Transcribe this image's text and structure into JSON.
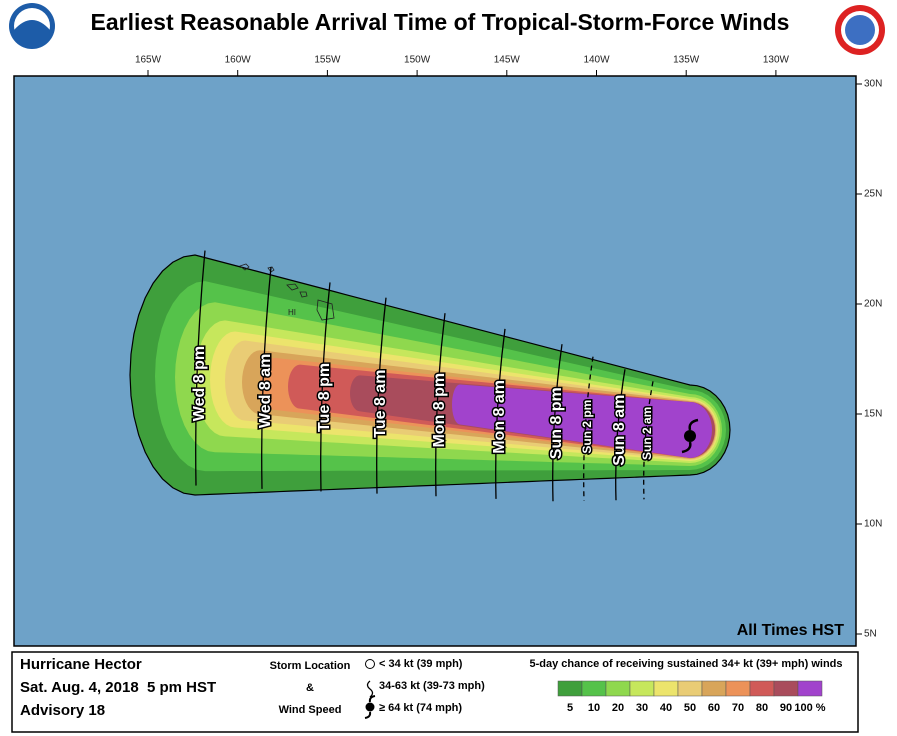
{
  "header": {
    "title": "Earliest Reasonable Arrival Time of Tropical-Storm-Force Winds"
  },
  "map": {
    "lon_labels": [
      "165W",
      "160W",
      "155W",
      "150W",
      "145W",
      "140W",
      "135W",
      "130W"
    ],
    "lat_labels": [
      "30N",
      "25N",
      "20N",
      "15N",
      "10N",
      "5N"
    ],
    "island_label": "HI",
    "time_labels": [
      "Wed 8 pm",
      "Wed 8 am",
      "Tue 8 pm",
      "Tue 8 am",
      "Mon 8 pm",
      "Mon 8 am",
      "Sun 8 pm",
      "Sun 2 pm",
      "Sun 8 am",
      "Sun 2 am"
    ],
    "note": "All Times HST"
  },
  "legend": {
    "storm": {
      "name": "Hurricane Hector",
      "date": "Sat. Aug. 4, 2018  5 pm HST",
      "advisory": "Advisory 18"
    },
    "key": {
      "line1": "Storm Location",
      "line2": "&",
      "line3": "Wind Speed",
      "items": [
        "< 34 kt (39 mph)",
        "34-63 kt (39-73 mph)",
        "≥ 64 kt (74 mph)"
      ]
    },
    "scale": {
      "title": "5-day chance of receiving sustained 34+ kt (39+ mph) winds",
      "labels": [
        "5",
        "10",
        "20",
        "30",
        "40",
        "50",
        "60",
        "70",
        "80",
        "90",
        "100 %"
      ],
      "colors": [
        "#3f9f3c",
        "#55c24a",
        "#8fd84e",
        "#c6e75c",
        "#ece46c",
        "#e9cc75",
        "#d8a55a",
        "#ec9259",
        "#d05a58",
        "#a94c5c",
        "#a143cc"
      ]
    }
  }
}
